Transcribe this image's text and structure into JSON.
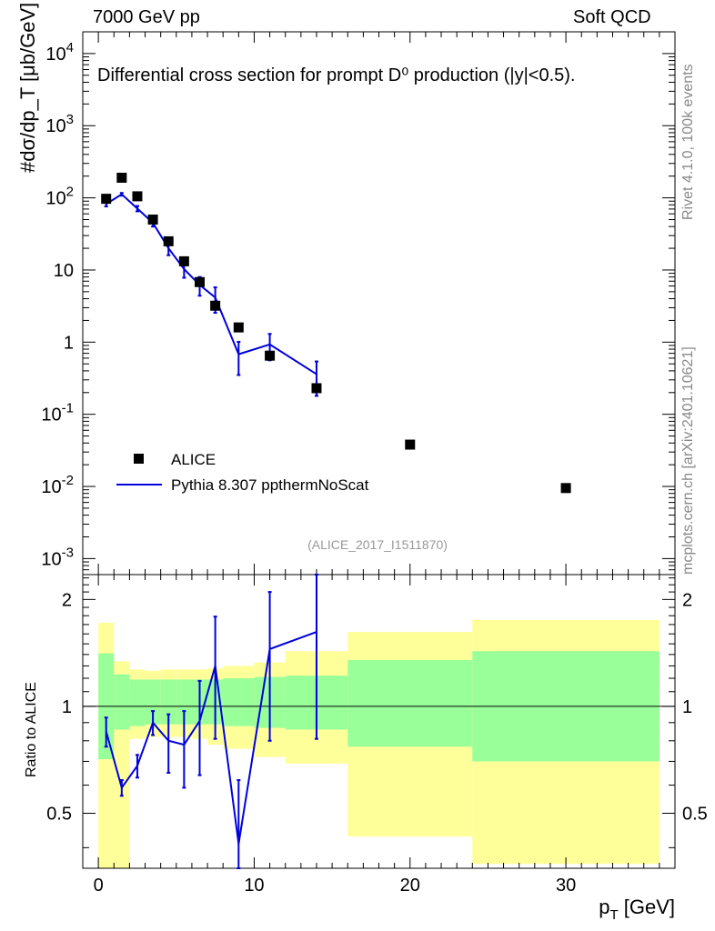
{
  "header": {
    "left": "7000 GeV pp",
    "right": "Soft QCD"
  },
  "side_labels": {
    "rivet": "Rivet 4.1.0,  100k events",
    "mcplots": "mcplots.cern.ch [arXiv:2401.10621]"
  },
  "chart_data": {
    "type": "scatter",
    "title": "Differential cross section for prompt D⁰ production (|y|<0.5).",
    "analysis_id": "(ALICE_2017_I1511870)",
    "xlabel": "p_T [GeV]",
    "ylabel": "#dσ/dp_T [μb/GeV]",
    "ratio_ylabel": "Ratio to ALICE",
    "xlim": [
      -1,
      37
    ],
    "ylim": [
      0.0006,
      20000
    ],
    "ratio_ylim": [
      0.35,
      2.35
    ],
    "x_ticks": [
      0,
      10,
      20,
      30
    ],
    "y_tick_labels": [
      "10^{-3}",
      "10^{-2}",
      "10^{-1}",
      "1",
      "10",
      "10^{2}",
      "10^{3}",
      "10^{4}"
    ],
    "ratio_ticks": [
      "0.5",
      "1",
      "2"
    ],
    "legend": {
      "position": "lower-left",
      "data_label": "ALICE",
      "mc_label": "Pythia 8.307 ppthermNoScat"
    },
    "data": {
      "name": "ALICE",
      "x": [
        0.5,
        1.5,
        2.5,
        3.5,
        4.5,
        5.5,
        6.5,
        7.5,
        9.0,
        11.0,
        14.0,
        20.0,
        30.0
      ],
      "x_lo": [
        0,
        1,
        2,
        3,
        4,
        5,
        6,
        7,
        8,
        10,
        12,
        16,
        24
      ],
      "x_hi": [
        1,
        2,
        3,
        4,
        5,
        6,
        7,
        8,
        10,
        12,
        16,
        24,
        36
      ],
      "y": [
        97,
        190,
        105,
        50,
        25,
        13.2,
        6.8,
        3.2,
        1.6,
        0.65,
        0.23,
        0.038,
        0.0095
      ],
      "band_stat_lo": [
        0.71,
        0.86,
        0.88,
        0.89,
        0.89,
        0.89,
        0.89,
        0.89,
        0.88,
        0.87,
        0.86,
        0.77,
        0.7
      ],
      "band_stat_hi": [
        1.41,
        1.23,
        1.19,
        1.19,
        1.19,
        1.19,
        1.19,
        1.19,
        1.2,
        1.21,
        1.22,
        1.35,
        1.43
      ],
      "band_tot_lo": [
        0.0,
        0.0,
        0.81,
        0.82,
        0.82,
        0.82,
        0.81,
        0.78,
        0.76,
        0.72,
        0.69,
        0.43,
        0.36
      ],
      "band_tot_hi": [
        1.72,
        1.34,
        1.27,
        1.26,
        1.27,
        1.27,
        1.27,
        1.28,
        1.3,
        1.33,
        1.43,
        1.62,
        1.75
      ]
    },
    "mc": {
      "name": "Pythia 8.307 ppthermNoScat",
      "x": [
        0.5,
        1.5,
        2.5,
        3.5,
        4.5,
        5.5,
        6.5,
        7.5,
        9.0,
        11.0,
        14.0
      ],
      "y": [
        82,
        112,
        71,
        45,
        20,
        10.3,
        6.2,
        4.15,
        0.68,
        0.93,
        0.36
      ],
      "y_err": [
        6,
        5,
        6,
        5,
        4,
        2.5,
        1.8,
        1.6,
        0.33,
        0.37,
        0.18
      ],
      "ratio": [
        0.85,
        0.59,
        0.68,
        0.9,
        0.8,
        0.78,
        0.91,
        1.3,
        0.41,
        1.45,
        1.62
      ],
      "ratio_err_lo": [
        0.08,
        0.03,
        0.05,
        0.07,
        0.15,
        0.19,
        0.27,
        0.49,
        0.21,
        0.65,
        0.81
      ],
      "ratio_err_hi": [
        0.08,
        0.03,
        0.05,
        0.07,
        0.15,
        0.19,
        0.27,
        0.49,
        0.21,
        0.65,
        0.81
      ]
    }
  }
}
